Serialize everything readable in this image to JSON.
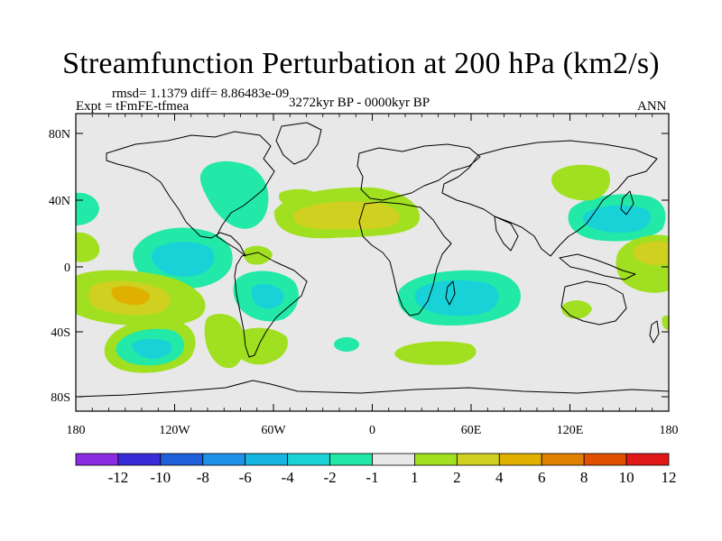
{
  "title": "Streamfunction Perturbation at 200 hPa (km2/s)",
  "stats": "rmsd= 1.1379 diff= 8.86483e-09",
  "experiment": "Expt = tFmFE-tfmea",
  "period": "3272kyr BP - 0000kyr BP",
  "season": "ANN",
  "axes": {
    "lat_labels": [
      "80N",
      "40N",
      "0",
      "40S",
      "80S"
    ],
    "lon_labels": [
      "180",
      "120W",
      "60W",
      "0",
      "60E",
      "120E",
      "180"
    ]
  },
  "colorbar": {
    "labels": [
      "-12",
      "-10",
      "-8",
      "-6",
      "-4",
      "-2",
      "-1",
      "1",
      "2",
      "4",
      "6",
      "8",
      "10",
      "12"
    ],
    "colors": [
      "#8a2be2",
      "#3a2bd8",
      "#1f5fd8",
      "#1e90e8",
      "#16b4e0",
      "#18d2d8",
      "#22e8a8",
      "#e8e8e8",
      "#a0e020",
      "#d0d020",
      "#e0b000",
      "#e08000",
      "#e05000",
      "#e01818"
    ]
  },
  "palette": {
    "neutral": "#e8e8e8",
    "cool_light": "#22e8a8",
    "cool_mid": "#18d2d8",
    "warm_light": "#a0e020",
    "warm_mid": "#d0d020",
    "warm_strong": "#e0b000",
    "coast": "#000000"
  }
}
